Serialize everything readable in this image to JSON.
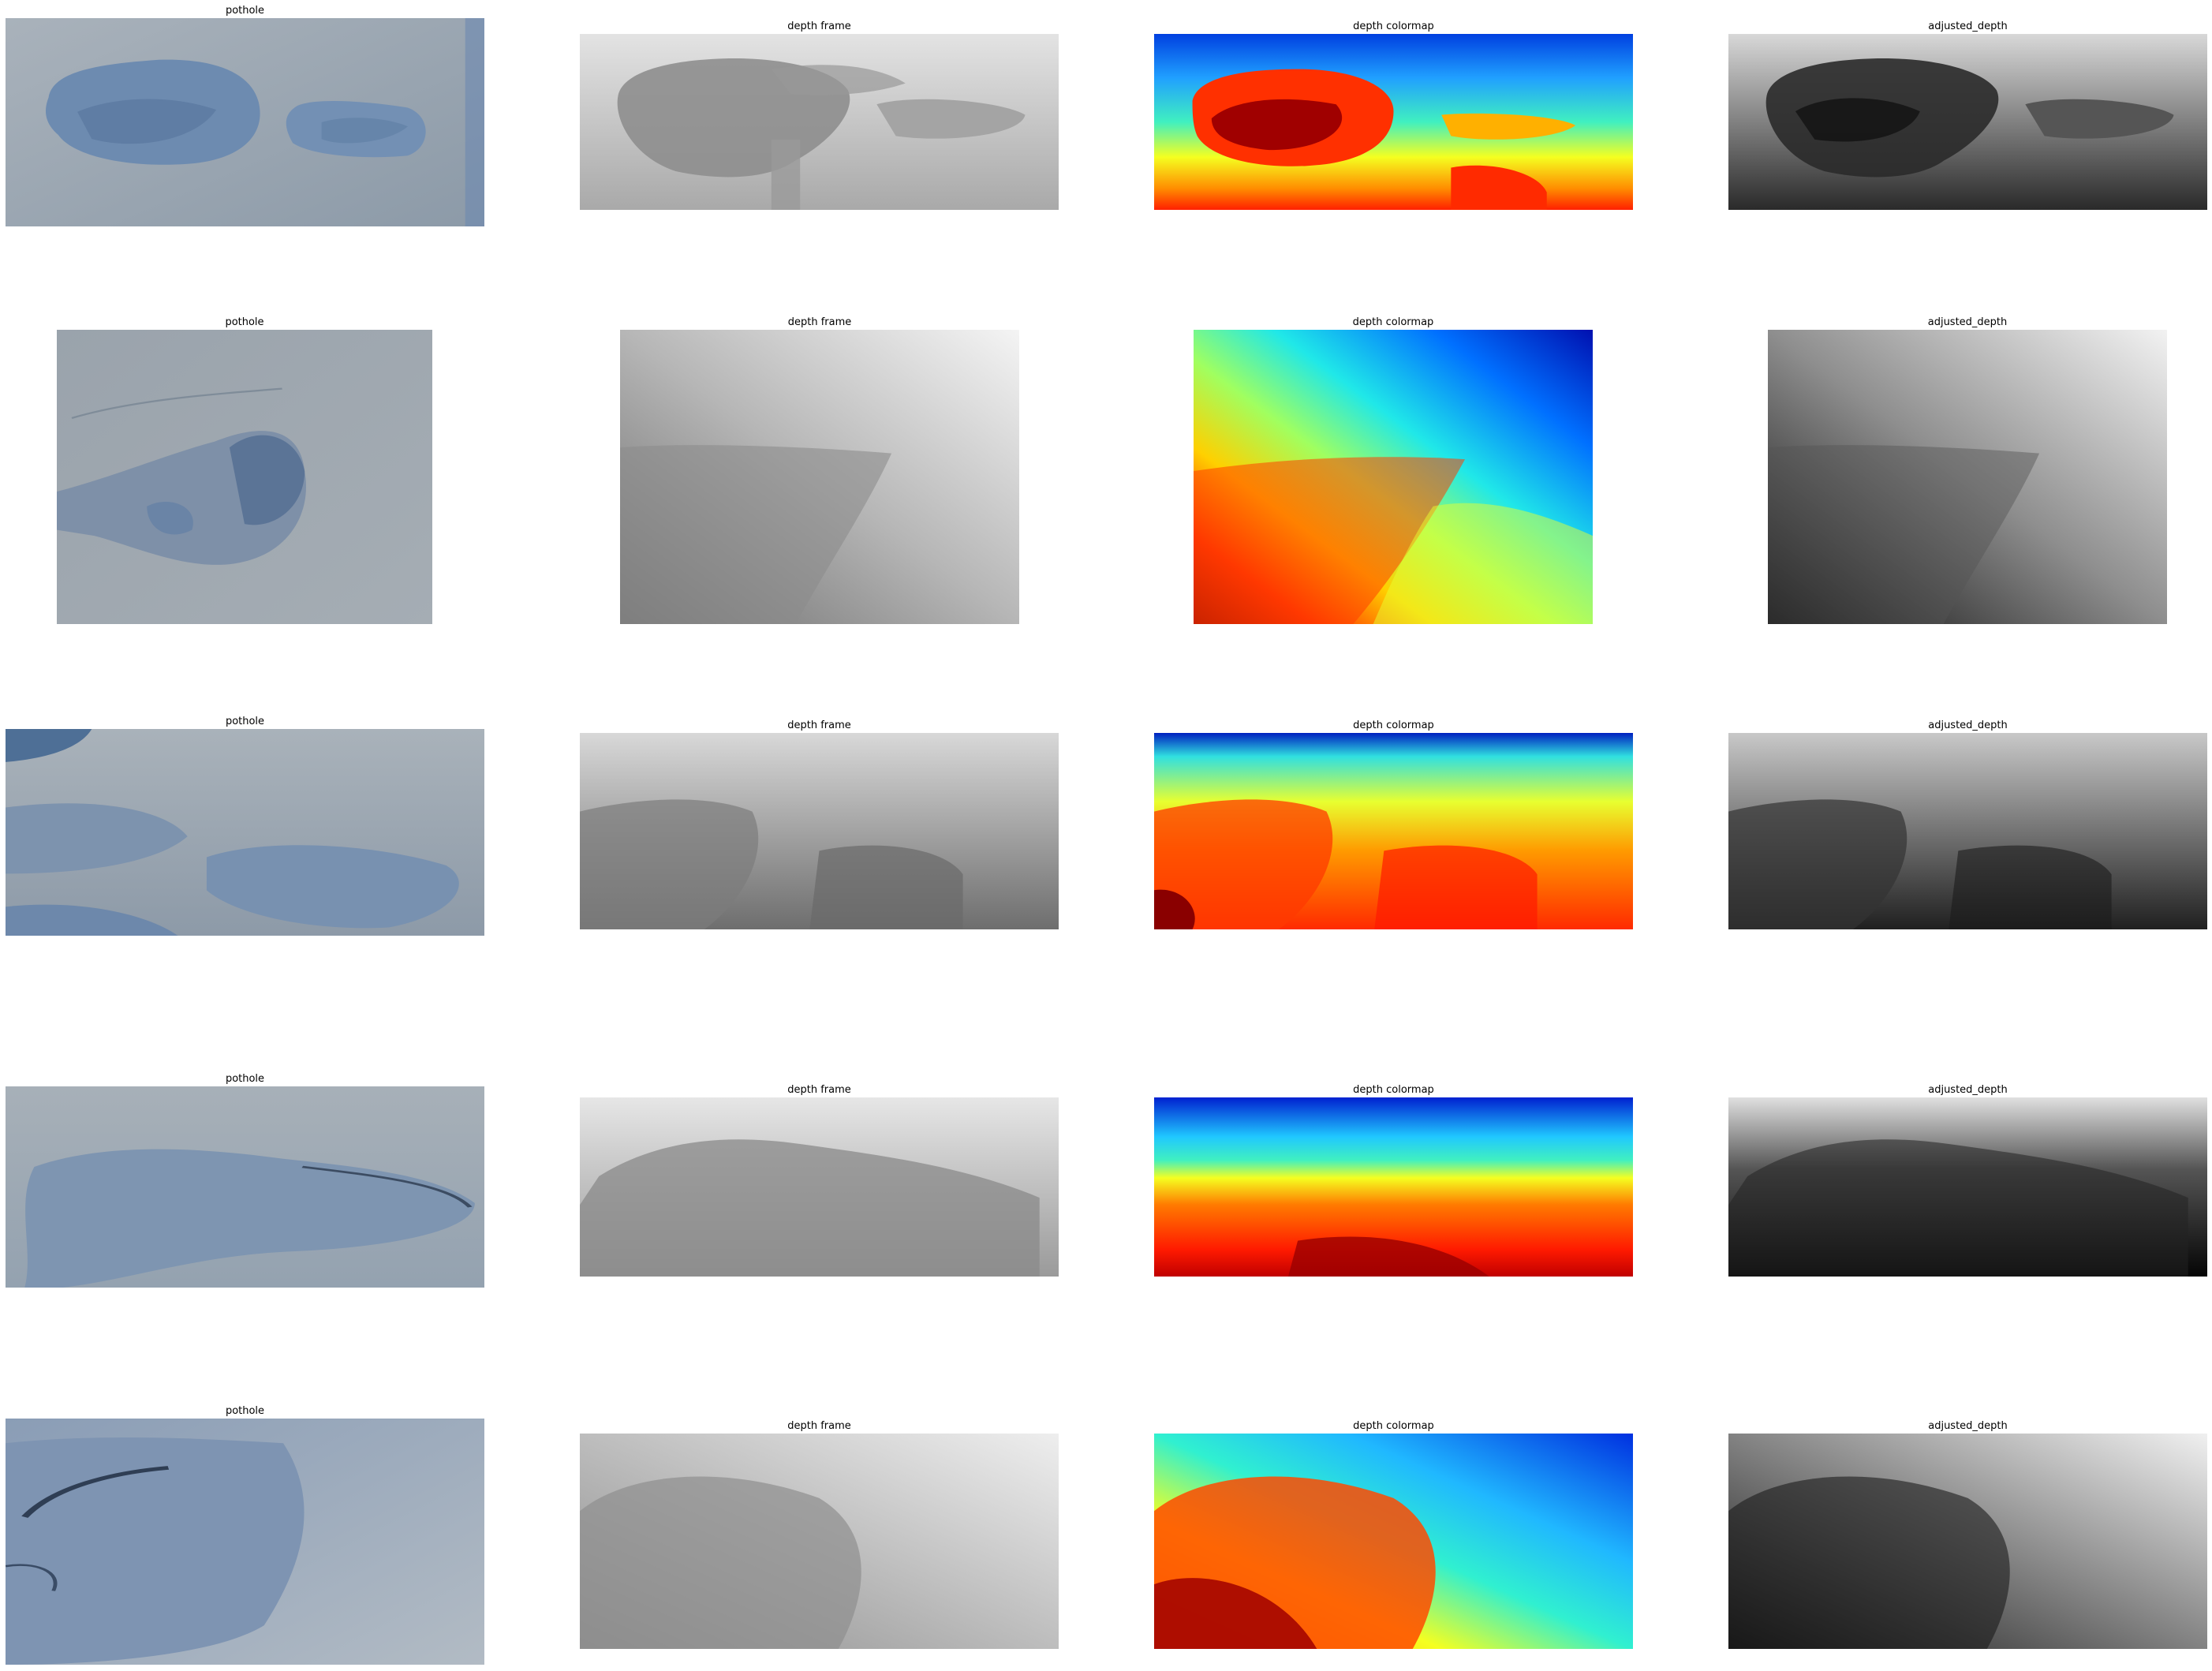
{
  "figure": {
    "rows": [
      {
        "pothole_title": "pothole",
        "depth_title": "depth frame",
        "colormap_title": "depth colormap",
        "adjusted_title": "adjusted_depth"
      },
      {
        "pothole_title": "pothole",
        "depth_title": "depth frame",
        "colormap_title": "depth colormap",
        "adjusted_title": "adjusted_depth"
      },
      {
        "pothole_title": "pothole",
        "depth_title": "depth frame",
        "colormap_title": "depth colormap",
        "adjusted_title": "adjusted_depth"
      },
      {
        "pothole_title": "pothole",
        "depth_title": "depth frame",
        "colormap_title": "depth colormap",
        "adjusted_title": "adjusted_depth"
      },
      {
        "pothole_title": "pothole",
        "depth_title": "depth frame",
        "colormap_title": "depth colormap",
        "adjusted_title": "adjusted_depth"
      }
    ]
  },
  "colors": {
    "road_light": "#b9c2cc",
    "road_mid": "#8fa0b4",
    "pothole_blue": "#5f7fa8",
    "pothole_dark": "#3c5474",
    "jet_dark_red": "#7f0000",
    "jet_red": "#ff1a00",
    "jet_orange": "#ff8c00",
    "jet_yellow": "#f5ff20",
    "jet_cyan": "#20f0e0",
    "jet_blue": "#0060ff",
    "jet_dark_blue": "#0000a0"
  }
}
